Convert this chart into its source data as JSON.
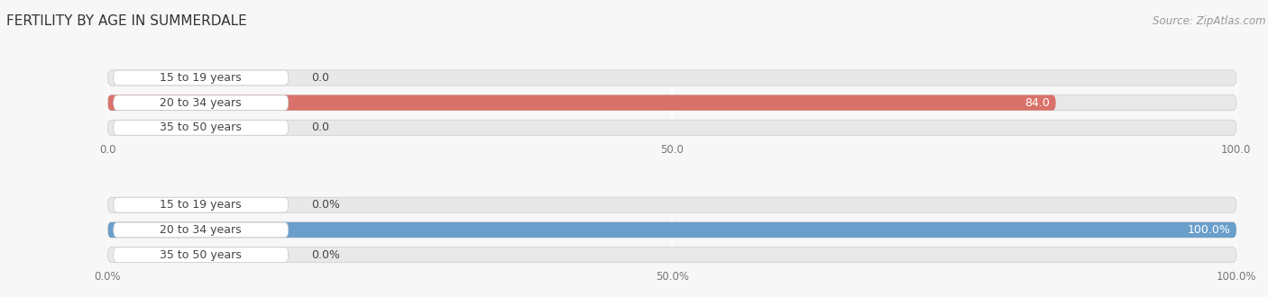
{
  "title": "FERTILITY BY AGE IN SUMMERDALE",
  "source": "Source: ZipAtlas.com",
  "top_chart": {
    "categories": [
      "15 to 19 years",
      "20 to 34 years",
      "35 to 50 years"
    ],
    "values": [
      0.0,
      84.0,
      0.0
    ],
    "max_value": 100.0,
    "bar_color": "#d9726a",
    "bg_color": "#e8e8e8",
    "tick_labels": [
      "0.0",
      "50.0",
      "100.0"
    ],
    "tick_values": [
      0.0,
      50.0,
      100.0
    ]
  },
  "bottom_chart": {
    "categories": [
      "15 to 19 years",
      "20 to 34 years",
      "35 to 50 years"
    ],
    "values": [
      0.0,
      100.0,
      0.0
    ],
    "max_value": 100.0,
    "bar_color": "#6a9fcb",
    "bg_color": "#e8e8e8",
    "tick_labels": [
      "0.0%",
      "50.0%",
      "100.0%"
    ],
    "tick_values": [
      0.0,
      50.0,
      100.0
    ]
  },
  "category_label_color": "#444444",
  "category_label_fontsize": 9,
  "value_label_fontsize": 9,
  "title_fontsize": 11,
  "source_fontsize": 8.5,
  "bar_height": 0.62,
  "fig_bg": "#f7f7f7"
}
